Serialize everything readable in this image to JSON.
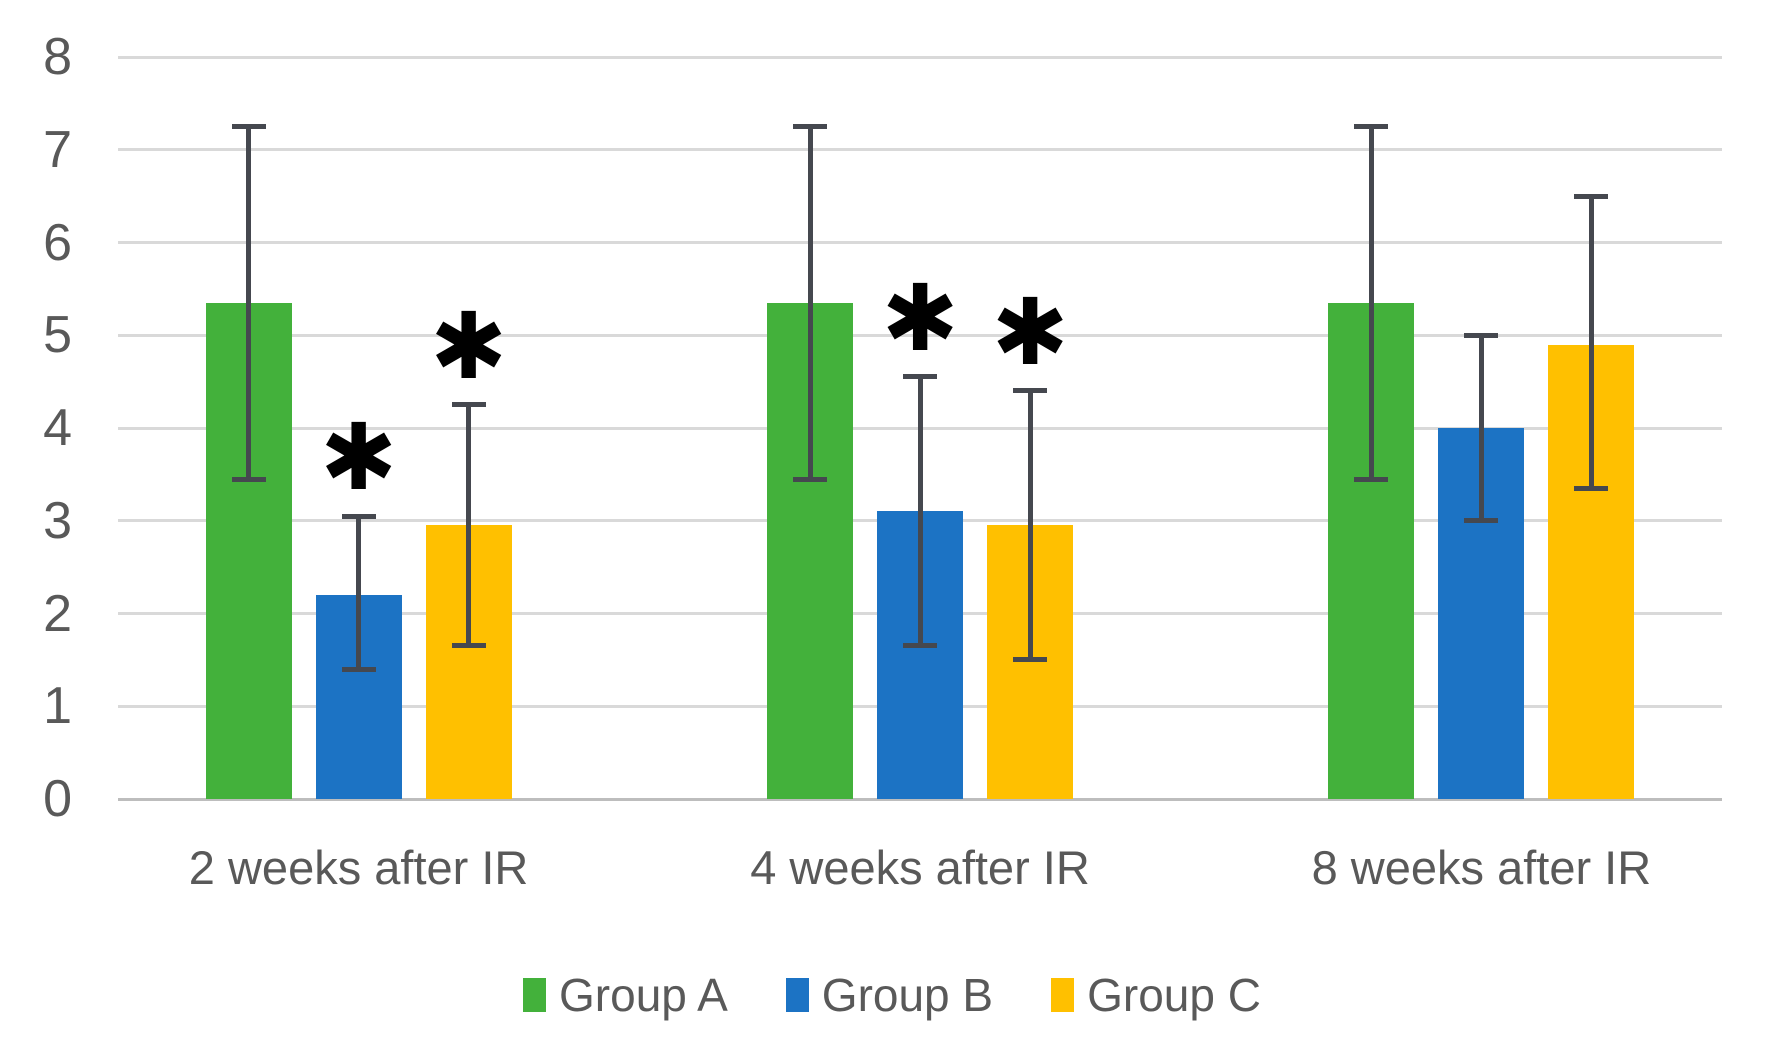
{
  "chart_data": {
    "type": "bar",
    "title": "",
    "categories": [
      "2 weeks after IR",
      "4 weeks after IR",
      "8 weeks after IR"
    ],
    "series": [
      {
        "name": "Group A",
        "color": "#43B13B",
        "values": [
          5.35,
          5.35,
          5.35
        ],
        "error_low": [
          3.45,
          3.45,
          3.45
        ],
        "error_high": [
          7.25,
          7.25,
          7.25
        ],
        "significance": [
          false,
          false,
          false
        ]
      },
      {
        "name": "Group B",
        "color": "#1C73C4",
        "values": [
          2.2,
          3.1,
          4.0
        ],
        "error_low": [
          1.4,
          1.65,
          3.0
        ],
        "error_high": [
          3.05,
          4.55,
          5.0
        ],
        "significance": [
          true,
          true,
          false
        ]
      },
      {
        "name": "Group C",
        "color": "#FFC000",
        "values": [
          2.95,
          2.95,
          4.9
        ],
        "error_low": [
          1.65,
          1.5,
          3.35
        ],
        "error_high": [
          4.25,
          4.4,
          6.5
        ],
        "significance": [
          true,
          true,
          false
        ]
      }
    ],
    "y_axis": {
      "min": 0,
      "max": 8,
      "tick_step": 1,
      "ticks": [
        0,
        1,
        2,
        3,
        4,
        5,
        6,
        7,
        8
      ]
    },
    "grid": true,
    "legend_position": "bottom",
    "significance_marker": "✱",
    "colors": {
      "gridline": "#D9D9D9",
      "baseline": "#BDBDBD",
      "error_bar": "#45484F",
      "text": "#595959",
      "marker": "#000000"
    }
  }
}
